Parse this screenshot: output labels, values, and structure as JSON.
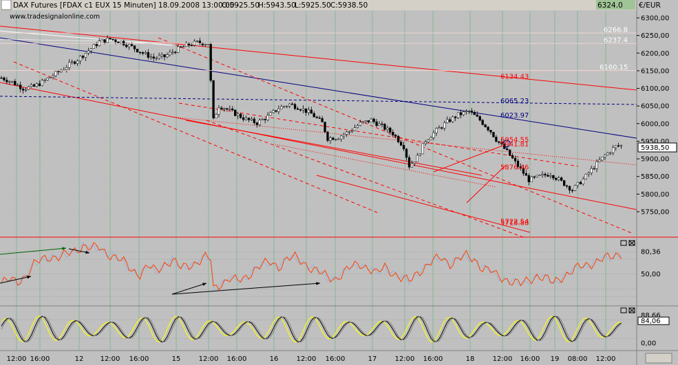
{
  "header": {
    "instrument": "DAX Futures [FDAX c1 EUX  15 Minuten] 18.09.2008 13:00:00 -",
    "open": "O:5925.50",
    "high": "H:5943.50",
    "low": "L:5925.50",
    "close": "C:5938.50",
    "source": "www.tradesignalonline.com",
    "top_value": "6324.0",
    "currency": "€/EUR"
  },
  "colors": {
    "background": "#c0c0c0",
    "channel": "#ff0000",
    "trend": "#000080",
    "rsi": "#ff4000",
    "rsi_smooth": "#9cb2d6",
    "stoch_k": "#ffff00",
    "stoch_d": "#000000",
    "grid": "#33b05a"
  },
  "chart_data": [
    {
      "type": "candlestick",
      "ylim": [
        5700,
        6330
      ],
      "y_ticks": [
        "6300,00",
        "6250,00",
        "6200,00",
        "6150,00",
        "6100,00",
        "6050,00",
        "6000,00",
        "5950,00",
        "5900,00",
        "5850,00",
        "5800,00",
        "5750,00"
      ],
      "y_tick_values": [
        6300,
        6250,
        6200,
        6150,
        6100,
        6050,
        6000,
        5950,
        5900,
        5850,
        5800,
        5750
      ],
      "x_ticks": [
        "12:00",
        "16:00",
        "12",
        "12:00",
        "16:00",
        "15",
        "12:00",
        "16:00",
        "16",
        "12:00",
        "16:00",
        "17",
        "12:00",
        "16:00",
        "18",
        "12:00",
        "16:00",
        "19",
        "08:00",
        "12:00"
      ],
      "last_price": "5938,50",
      "last_price_value": 5938.5,
      "level_labels": [
        {
          "text": "6266.8",
          "value": 6266.8,
          "color": "#ffffff"
        },
        {
          "text": "6237.4",
          "value": 6237.4,
          "color": "#ffffff"
        },
        {
          "text": "6160.15",
          "value": 6160.15,
          "color": "#ffffff"
        },
        {
          "text": "6134.43",
          "value": 6134.43,
          "color": "#ff0000"
        },
        {
          "text": "6065.23",
          "value": 6065.23,
          "color": "#000080"
        },
        {
          "text": "6023.97",
          "value": 6023.97,
          "color": "#000080"
        },
        {
          "text": "5954.55",
          "value": 5954.55,
          "color": "#ff0000"
        },
        {
          "text": "5941.81",
          "value": 5941.81,
          "color": "#ff0000"
        },
        {
          "text": "5876.46",
          "value": 5876.46,
          "color": "#ff0000"
        },
        {
          "text": "5722.54",
          "value": 5722.54,
          "color": "#ff0000"
        },
        {
          "text": "5718.88",
          "value": 5718.88,
          "color": "#ff0000"
        }
      ],
      "price_path": [
        [
          0,
          6130
        ],
        [
          4,
          6118
        ],
        [
          8,
          6100
        ],
        [
          12,
          6105
        ],
        [
          16,
          6122
        ],
        [
          20,
          6142
        ],
        [
          24,
          6162
        ],
        [
          28,
          6182
        ],
        [
          32,
          6207
        ],
        [
          36,
          6232
        ],
        [
          40,
          6240
        ],
        [
          44,
          6232
        ],
        [
          48,
          6218
        ],
        [
          52,
          6200
        ],
        [
          56,
          6186
        ],
        [
          60,
          6190
        ],
        [
          64,
          6208
        ],
        [
          68,
          6222
        ],
        [
          72,
          6230
        ],
        [
          76,
          6228
        ],
        [
          78,
          6010
        ],
        [
          80,
          6050
        ],
        [
          82,
          6045
        ],
        [
          86,
          6028
        ],
        [
          90,
          6012
        ],
        [
          94,
          6002
        ],
        [
          98,
          6020
        ],
        [
          102,
          6044
        ],
        [
          106,
          6055
        ],
        [
          110,
          6044
        ],
        [
          114,
          6028
        ],
        [
          118,
          6002
        ],
        [
          120,
          5958
        ],
        [
          124,
          5962
        ],
        [
          128,
          5978
        ],
        [
          132,
          6000
        ],
        [
          136,
          6010
        ],
        [
          140,
          5992
        ],
        [
          144,
          5972
        ],
        [
          148,
          5935
        ],
        [
          150,
          5880
        ],
        [
          153,
          5905
        ],
        [
          156,
          5952
        ],
        [
          160,
          5980
        ],
        [
          164,
          6005
        ],
        [
          168,
          6025
        ],
        [
          172,
          6035
        ],
        [
          176,
          6010
        ],
        [
          180,
          5978
        ],
        [
          182,
          5955
        ],
        [
          186,
          5920
        ],
        [
          190,
          5880
        ],
        [
          194,
          5840
        ],
        [
          198,
          5850
        ],
        [
          202,
          5858
        ],
        [
          206,
          5835
        ],
        [
          210,
          5812
        ],
        [
          214,
          5842
        ],
        [
          218,
          5878
        ],
        [
          222,
          5910
        ],
        [
          226,
          5935
        ],
        [
          228,
          5938
        ]
      ]
    },
    {
      "type": "line",
      "name": "RSI",
      "y_ticks": [
        "80,36",
        "50,00"
      ],
      "y_tick_values": [
        80.36,
        50
      ],
      "ylim": [
        10,
        95
      ],
      "rsi": [
        [
          0,
          38
        ],
        [
          3,
          42
        ],
        [
          6,
          40
        ],
        [
          9,
          48
        ],
        [
          12,
          62
        ],
        [
          15,
          70
        ],
        [
          18,
          74
        ],
        [
          21,
          72
        ],
        [
          24,
          76
        ],
        [
          27,
          82
        ],
        [
          30,
          88
        ],
        [
          33,
          84
        ],
        [
          36,
          86
        ],
        [
          39,
          78
        ],
        [
          42,
          72
        ],
        [
          45,
          66
        ],
        [
          48,
          56
        ],
        [
          51,
          50
        ],
        [
          54,
          60
        ],
        [
          57,
          54
        ],
        [
          60,
          64
        ],
        [
          63,
          68
        ],
        [
          66,
          58
        ],
        [
          69,
          62
        ],
        [
          72,
          66
        ],
        [
          75,
          72
        ],
        [
          77,
          70
        ],
        [
          78,
          30
        ],
        [
          81,
          38
        ],
        [
          84,
          44
        ],
        [
          87,
          40
        ],
        [
          90,
          46
        ],
        [
          93,
          56
        ],
        [
          96,
          62
        ],
        [
          99,
          66
        ],
        [
          102,
          60
        ],
        [
          105,
          70
        ],
        [
          108,
          72
        ],
        [
          111,
          66
        ],
        [
          114,
          58
        ],
        [
          117,
          52
        ],
        [
          120,
          46
        ],
        [
          123,
          44
        ],
        [
          126,
          52
        ],
        [
          129,
          60
        ],
        [
          132,
          64
        ],
        [
          135,
          58
        ],
        [
          138,
          50
        ],
        [
          141,
          60
        ],
        [
          144,
          52
        ],
        [
          147,
          44
        ],
        [
          150,
          40
        ],
        [
          153,
          52
        ],
        [
          156,
          60
        ],
        [
          159,
          68
        ],
        [
          162,
          72
        ],
        [
          165,
          64
        ],
        [
          168,
          70
        ],
        [
          171,
          74
        ],
        [
          174,
          70
        ],
        [
          177,
          58
        ],
        [
          180,
          54
        ],
        [
          182,
          48
        ],
        [
          185,
          44
        ],
        [
          188,
          40
        ],
        [
          191,
          36
        ],
        [
          194,
          42
        ],
        [
          197,
          48
        ],
        [
          200,
          44
        ],
        [
          203,
          38
        ],
        [
          206,
          46
        ],
        [
          209,
          52
        ],
        [
          212,
          58
        ],
        [
          215,
          62
        ],
        [
          218,
          66
        ],
        [
          221,
          70
        ],
        [
          224,
          72
        ],
        [
          226,
          76
        ],
        [
          228,
          78
        ]
      ]
    },
    {
      "type": "line",
      "name": "Stochastic",
      "y_ticks": [
        "88,66",
        "84,06",
        "0,00"
      ],
      "y_tick_values": [
        88.66,
        84.06,
        0
      ],
      "ylim": [
        -10,
        100
      ]
    }
  ]
}
